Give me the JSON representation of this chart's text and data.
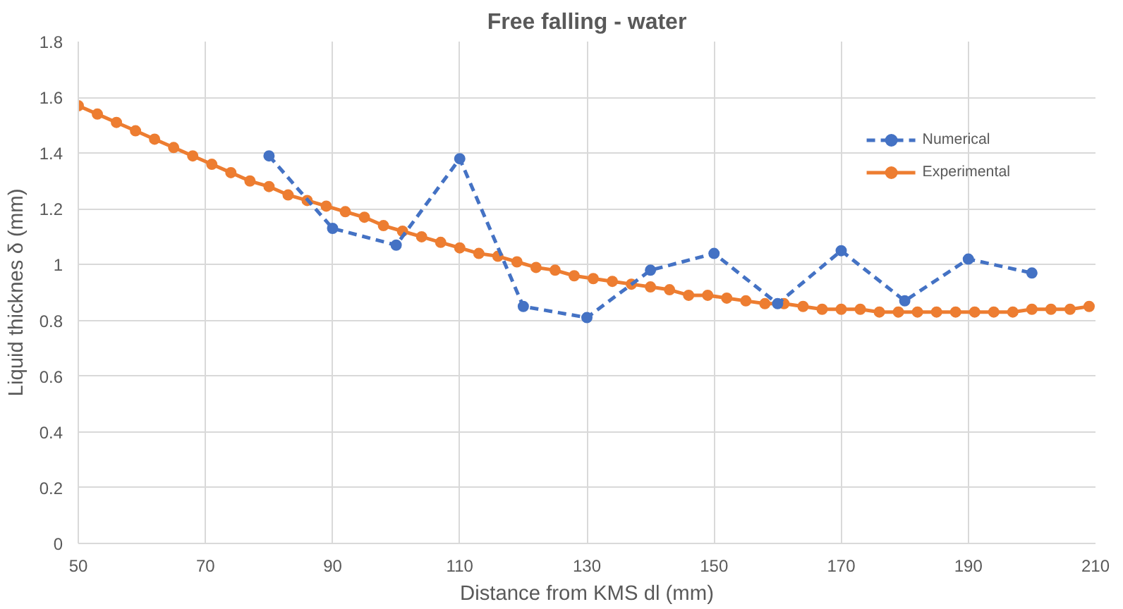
{
  "chart_data": {
    "type": "line",
    "title": "Free falling - water",
    "xlabel": "Distance from KMS dl (mm)",
    "ylabel": "Liquid thicknes δ (mm)",
    "xlim": [
      50,
      210
    ],
    "xticks": [
      50,
      70,
      90,
      110,
      130,
      150,
      170,
      190,
      210
    ],
    "ylim": [
      0,
      1.8
    ],
    "yticks": [
      0,
      {
        "value": 0.2,
        "label": "0.2"
      },
      {
        "value": 0.4,
        "label": "0.4"
      },
      {
        "value": 0.6,
        "label": "0.6"
      },
      {
        "value": 0.8,
        "label": "0.8"
      },
      1,
      {
        "value": 1.2,
        "label": "1.2"
      },
      {
        "value": 1.4,
        "label": "1.4"
      },
      {
        "value": 1.6,
        "label": "1.6"
      },
      {
        "value": 1.8,
        "label": "1.8"
      }
    ],
    "grid": true,
    "legend": "top right",
    "marker": "circle",
    "series": [
      {
        "name": "Numerical",
        "color": "#4472c4",
        "line_style": "dashed",
        "x": [
          80,
          90,
          100,
          110,
          120,
          130,
          140,
          150,
          160,
          170,
          180,
          190,
          200
        ],
        "values": [
          1.39,
          1.13,
          1.07,
          1.38,
          0.85,
          0.81,
          0.98,
          1.04,
          0.86,
          1.05,
          0.87,
          1.02,
          0.97
        ]
      },
      {
        "name": "Experimental",
        "color": "#ed7d31",
        "line_style": "solid",
        "x": [
          50,
          53,
          56,
          59,
          62,
          65,
          68,
          71,
          74,
          77,
          80,
          83,
          86,
          89,
          92,
          95,
          98,
          101,
          104,
          107,
          110,
          113,
          116,
          119,
          122,
          125,
          128,
          131,
          134,
          137,
          140,
          143,
          146,
          149,
          152,
          155,
          158,
          161,
          164,
          167,
          170,
          173,
          176,
          179,
          182,
          185,
          188,
          191,
          194,
          197,
          200,
          203,
          206,
          209
        ],
        "values": [
          1.57,
          1.54,
          1.51,
          1.48,
          1.45,
          1.42,
          1.39,
          1.36,
          1.33,
          1.3,
          1.28,
          1.25,
          1.23,
          1.21,
          1.19,
          1.17,
          1.14,
          1.12,
          1.1,
          1.08,
          1.06,
          1.04,
          1.03,
          1.01,
          0.99,
          0.98,
          0.96,
          0.95,
          0.94,
          0.93,
          0.92,
          0.91,
          0.89,
          0.89,
          0.88,
          0.87,
          0.86,
          0.86,
          0.85,
          0.84,
          0.84,
          0.84,
          0.83,
          0.83,
          0.83,
          0.83,
          0.83,
          0.83,
          0.83,
          0.83,
          0.84,
          0.84,
          0.84,
          0.85
        ]
      }
    ]
  }
}
